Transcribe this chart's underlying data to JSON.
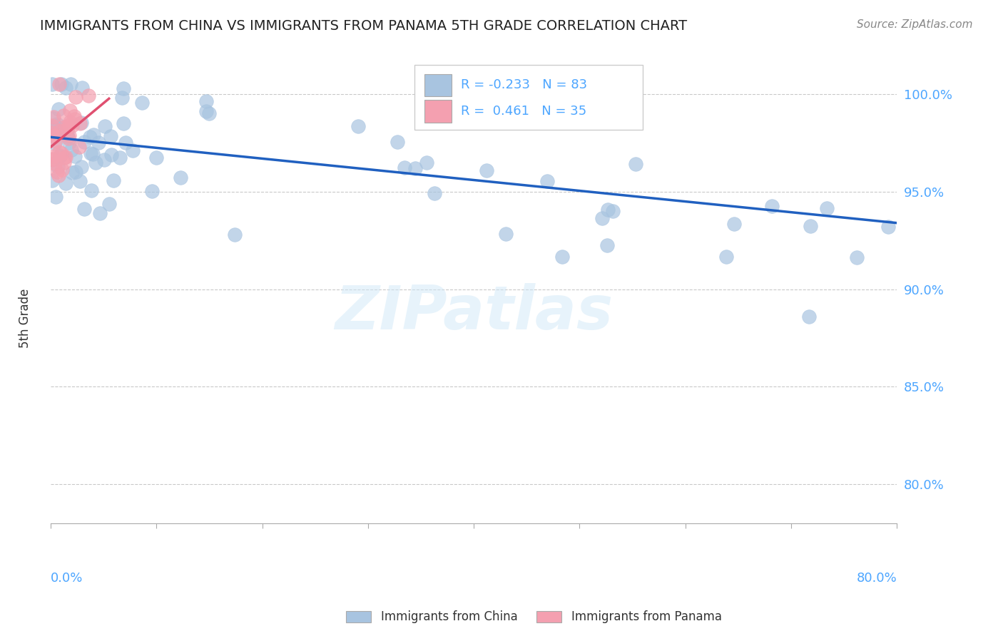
{
  "title": "IMMIGRANTS FROM CHINA VS IMMIGRANTS FROM PANAMA 5TH GRADE CORRELATION CHART",
  "source": "Source: ZipAtlas.com",
  "ylabel": "5th Grade",
  "y_ticks": [
    80.0,
    85.0,
    90.0,
    95.0,
    100.0
  ],
  "x_min": 0.0,
  "x_max": 80.0,
  "y_min": 78.0,
  "y_max": 102.0,
  "r_china": -0.233,
  "n_china": 83,
  "r_panama": 0.461,
  "n_panama": 35,
  "china_color": "#a8c4e0",
  "panama_color": "#f4a0b0",
  "china_line_color": "#2060c0",
  "panama_line_color": "#e05070",
  "legend_label_china": "Immigrants from China",
  "legend_label_panama": "Immigrants from Panama"
}
